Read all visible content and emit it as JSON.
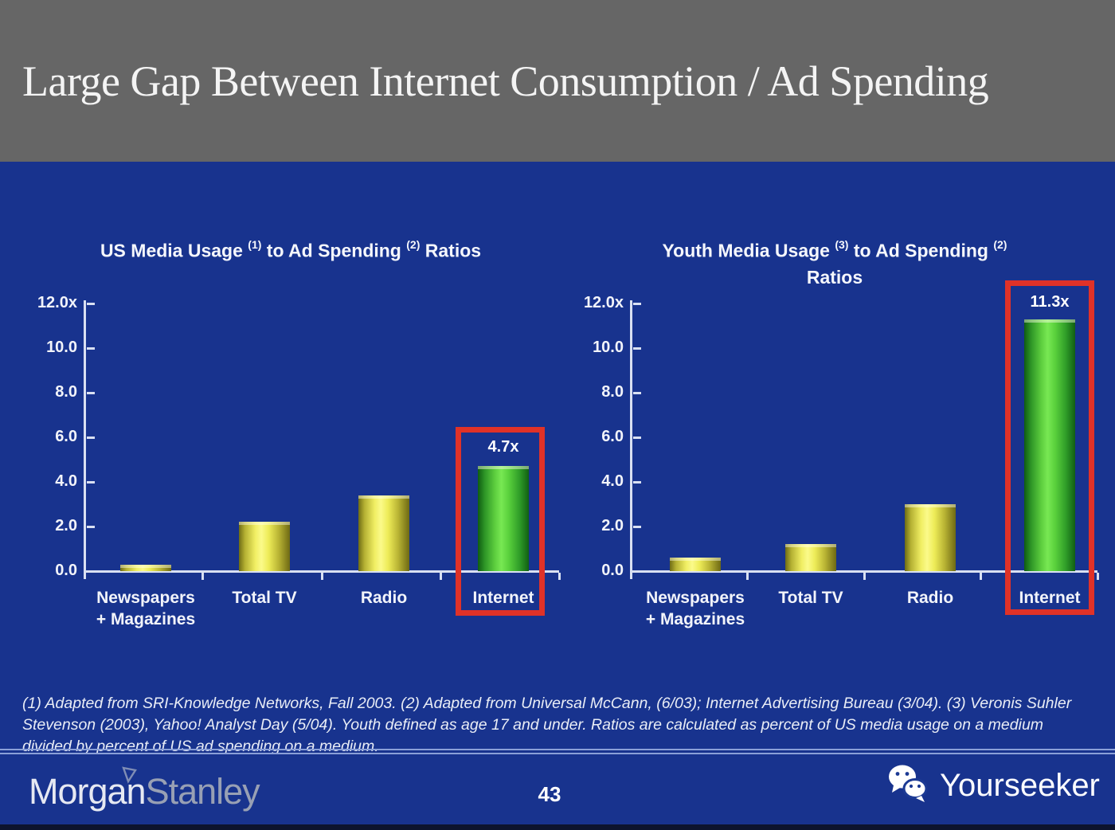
{
  "header": {
    "title": "Large Gap Between Internet Consumption / Ad Spending"
  },
  "chart_data": [
    {
      "type": "bar",
      "title_lines": [
        [
          {
            "t": "US Media Usage "
          },
          {
            "sup": "(1)"
          },
          {
            "t": " to Ad Spending "
          },
          {
            "sup": "(2)"
          },
          {
            "t": " Ratios"
          }
        ]
      ],
      "categories": [
        [
          "Newspapers",
          "+ Magazines"
        ],
        [
          "Total TV"
        ],
        [
          "Radio"
        ],
        [
          "Internet"
        ]
      ],
      "values": [
        0.3,
        2.2,
        3.4,
        4.7
      ],
      "bar_colors": [
        "yellow",
        "yellow",
        "yellow",
        "green"
      ],
      "highlight": {
        "index": 3,
        "label": "4.7x"
      },
      "y_ticks": [
        "12.0x",
        "10.0",
        "8.0",
        "6.0",
        "4.0",
        "2.0",
        "0.0"
      ],
      "ylim": [
        0,
        12
      ],
      "grid": false,
      "legend": "none"
    },
    {
      "type": "bar",
      "title_lines": [
        [
          {
            "t": "Youth Media Usage "
          },
          {
            "sup": "(3)"
          },
          {
            "t": " to Ad Spending "
          },
          {
            "sup": "(2)"
          }
        ],
        [
          {
            "t": "Ratios"
          }
        ]
      ],
      "categories": [
        [
          "Newspapers",
          "+ Magazines"
        ],
        [
          "Total TV"
        ],
        [
          "Radio"
        ],
        [
          "Internet"
        ]
      ],
      "values": [
        0.6,
        1.2,
        3.0,
        11.3
      ],
      "bar_colors": [
        "yellow",
        "yellow",
        "yellow",
        "green"
      ],
      "highlight": {
        "index": 3,
        "label": "11.3x"
      },
      "y_ticks": [
        "12.0x",
        "10.0",
        "8.0",
        "6.0",
        "4.0",
        "2.0",
        "0.0"
      ],
      "ylim": [
        0,
        12
      ],
      "grid": false,
      "legend": "none"
    }
  ],
  "footnote": "(1) Adapted from SRI-Knowledge Networks, Fall 2003.  (2) Adapted from Universal McCann, (6/03); Internet Advertising Bureau (3/04). (3) Veronis Suhler Stevenson (2003), Yahoo! Analyst Day (5/04).  Youth defined as age 17 and under.  Ratios are calculated as percent of US media usage on a medium divided by percent of US ad spending on a medium.",
  "footer": {
    "logo_morgan": "Morgan",
    "logo_stanley": "Stanley",
    "page_number": "43",
    "logo_right": "Yourseeker",
    "wechat_icon": "wechat-bubbles-icon",
    "flag_icon": "morgan-stanley-flag-icon"
  },
  "colors": {
    "background": "#18338e",
    "header_gray": "#666666",
    "bar_yellow": "#f0ee63",
    "bar_green": "#5ecf3f",
    "highlight_red": "#e03228",
    "axis": "#d9e0f2",
    "divider": "#8ba0d8"
  }
}
